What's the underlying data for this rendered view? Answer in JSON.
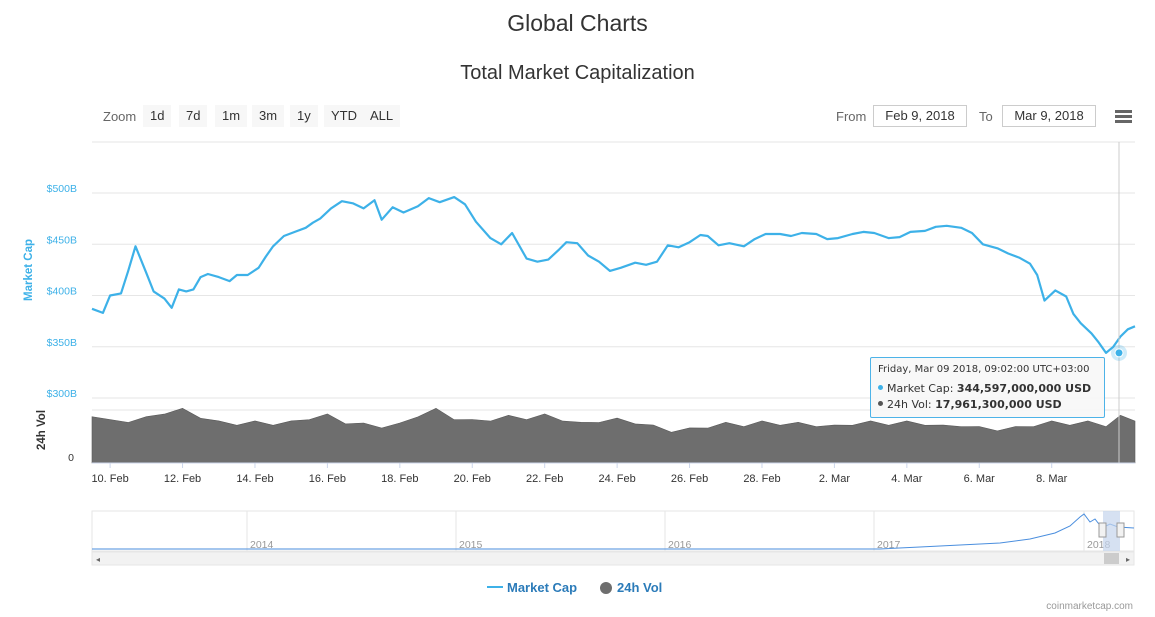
{
  "page": {
    "title": "Global Charts"
  },
  "toolbar": {
    "zoom_label": "Zoom",
    "zoom_buttons": [
      "1d",
      "7d",
      "1m",
      "3m",
      "1y",
      "YTD",
      "ALL"
    ],
    "from_label": "From",
    "from_value": "Feb 9, 2018",
    "to_label": "To",
    "to_value": "Mar 9, 2018"
  },
  "tooltip": {
    "date": "Friday, Mar 09 2018, 09:02:00 UTC+03:00",
    "market_cap_label": "Market Cap:",
    "market_cap_value": "344,597,000,000 USD",
    "vol_label": "24h Vol:",
    "vol_value": "17,961,300,000 USD"
  },
  "legend": [
    {
      "name": "Market Cap",
      "color": "#3db1e8"
    },
    {
      "name": "24h Vol",
      "color": "#6e6e6e"
    }
  ],
  "credit": "coinmarketcap.com",
  "colors": {
    "market_cap": "#3db1e8",
    "volume": "#6e6e6e",
    "navigator_highlight": "#c5d4ec"
  },
  "chart_data": {
    "type": "line",
    "title": "Total Market Capitalization",
    "ylabel": "Market Cap",
    "y2label": "24h Vol",
    "ylim": [
      300,
      500
    ],
    "y_ticks": [
      "$300B",
      "$350B",
      "$400B",
      "$450B",
      "$500B"
    ],
    "y2_ticks": [
      "0"
    ],
    "x_ticks": [
      "10. Feb",
      "12. Feb",
      "14. Feb",
      "16. Feb",
      "18. Feb",
      "20. Feb",
      "22. Feb",
      "24. Feb",
      "26. Feb",
      "28. Feb",
      "2. Mar",
      "4. Mar",
      "6. Mar",
      "8. Mar"
    ],
    "xlim_days": [
      0,
      28.8
    ],
    "series": [
      {
        "name": "Market Cap",
        "unit": "billion USD",
        "x_days": [
          0,
          0.3,
          0.5,
          0.8,
          1.0,
          1.2,
          1.5,
          1.7,
          2.0,
          2.2,
          2.4,
          2.6,
          2.8,
          3.0,
          3.2,
          3.5,
          3.8,
          4.0,
          4.3,
          4.6,
          4.8,
          5.0,
          5.3,
          5.6,
          5.9,
          6.1,
          6.3,
          6.6,
          6.9,
          7.2,
          7.5,
          7.8,
          8.0,
          8.3,
          8.6,
          9.0,
          9.3,
          9.6,
          10.0,
          10.3,
          10.6,
          11.0,
          11.3,
          11.6,
          12.0,
          12.3,
          12.6,
          12.9,
          13.1,
          13.4,
          13.7,
          14.0,
          14.3,
          14.6,
          15.0,
          15.3,
          15.6,
          15.9,
          16.2,
          16.5,
          16.8,
          17.0,
          17.3,
          17.6,
          18.0,
          18.3,
          18.6,
          19.0,
          19.3,
          19.6,
          20.0,
          20.3,
          20.6,
          21.0,
          21.3,
          21.6,
          22.0,
          22.3,
          22.6,
          23.0,
          23.3,
          23.6,
          24.0,
          24.3,
          24.6,
          25.0,
          25.3,
          25.6,
          25.9,
          26.1,
          26.3,
          26.6,
          26.9,
          27.1,
          27.3,
          27.6,
          27.8,
          28.0,
          28.2,
          28.4,
          28.6,
          28.8
        ],
        "values": [
          387,
          383,
          400,
          402,
          424,
          448,
          422,
          404,
          397,
          388,
          406,
          404,
          406,
          418,
          421,
          418,
          414,
          420,
          420,
          427,
          438,
          448,
          458,
          462,
          466,
          471,
          475,
          485,
          492,
          490,
          485,
          493,
          474,
          486,
          481,
          487,
          495,
          491,
          496,
          489,
          472,
          456,
          450,
          461,
          436,
          433,
          435,
          445,
          452,
          451,
          439,
          433,
          424,
          427,
          432,
          430,
          433,
          449,
          447,
          452,
          459,
          458,
          449,
          451,
          448,
          455,
          460,
          460,
          458,
          461,
          460,
          455,
          456,
          460,
          462,
          461,
          456,
          457,
          462,
          463,
          467,
          468,
          466,
          461,
          450,
          446,
          441,
          437,
          431,
          420,
          395,
          405,
          399,
          382,
          373,
          363,
          354,
          344,
          350,
          360,
          367,
          370
        ]
      },
      {
        "name": "24h Vol",
        "unit": "relative",
        "x_days": [
          0,
          1,
          1.5,
          2,
          2.5,
          3,
          3.5,
          4,
          4.5,
          5,
          5.5,
          6,
          6.5,
          7,
          7.5,
          8,
          8.5,
          9,
          9.5,
          10,
          10.5,
          11,
          11.5,
          12,
          12.5,
          13,
          13.5,
          14,
          14.5,
          15,
          15.5,
          16,
          16.5,
          17,
          17.5,
          18,
          18.5,
          19,
          19.5,
          20,
          20.5,
          21,
          21.5,
          22,
          22.5,
          23,
          23.5,
          24,
          24.5,
          25,
          25.5,
          26,
          26.5,
          27,
          27.5,
          28,
          28.4,
          28.8
        ],
        "values": [
          0.64,
          0.6,
          0.64,
          0.72,
          0.76,
          0.66,
          0.58,
          0.56,
          0.58,
          0.56,
          0.58,
          0.64,
          0.68,
          0.58,
          0.55,
          0.52,
          0.55,
          0.68,
          0.76,
          0.64,
          0.6,
          0.62,
          0.66,
          0.64,
          0.68,
          0.62,
          0.56,
          0.6,
          0.62,
          0.58,
          0.52,
          0.46,
          0.48,
          0.52,
          0.56,
          0.54,
          0.58,
          0.56,
          0.56,
          0.54,
          0.52,
          0.56,
          0.58,
          0.56,
          0.58,
          0.56,
          0.52,
          0.54,
          0.5,
          0.48,
          0.5,
          0.54,
          0.58,
          0.56,
          0.58,
          0.54,
          0.66,
          0.62
        ]
      }
    ],
    "navigator": {
      "x_ticks": [
        "2014",
        "2015",
        "2016",
        "2017",
        "2018"
      ]
    }
  }
}
